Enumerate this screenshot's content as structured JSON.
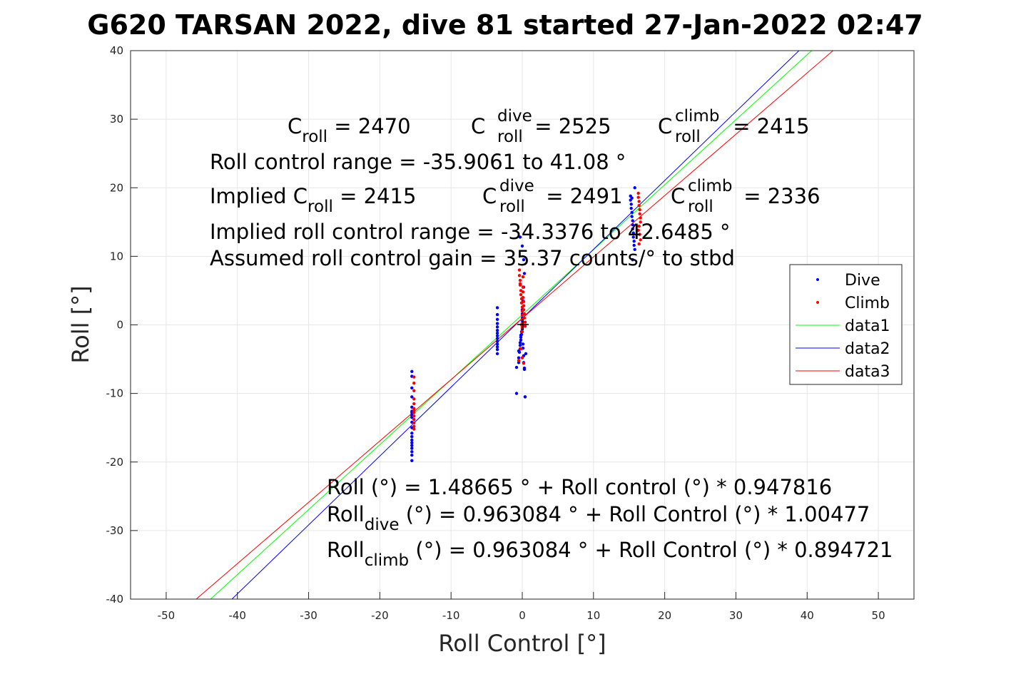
{
  "chart_data": {
    "type": "scatter",
    "title": "G620 TARSAN 2022, dive 81 started 27-Jan-2022 02:47",
    "xlabel": "Roll Control [°]",
    "ylabel": "Roll [°]",
    "xlim": [
      -55,
      55
    ],
    "ylim": [
      -40,
      40
    ],
    "xticks": [
      -50,
      -40,
      -30,
      -20,
      -10,
      0,
      10,
      20,
      30,
      40,
      50
    ],
    "yticks": [
      -40,
      -30,
      -20,
      -10,
      0,
      10,
      20,
      30,
      40
    ],
    "grid": true,
    "legend_position": "right",
    "legend": [
      "Dive",
      "Climb",
      "data1",
      "data2",
      "data3"
    ],
    "colors": {
      "dive": "#0000ff",
      "climb": "#ff0000",
      "data1": "#00ff00",
      "data2": "#0000ff",
      "data3": "#ff0000",
      "grid": "#e6e6e6",
      "axis": "#262626"
    },
    "lines": [
      {
        "name": "data1",
        "intercept": 1.48665,
        "slope": 0.947816
      },
      {
        "name": "data2",
        "intercept": 0.963084,
        "slope": 1.00477
      },
      {
        "name": "data3",
        "intercept": 0.963084,
        "slope": 0.894721
      }
    ],
    "series": [
      {
        "name": "Dive",
        "x": [
          -15.5,
          -15.5,
          -15.5,
          -15.5,
          -15.5,
          -15.5,
          -15.5,
          -15.5,
          -15.5,
          -15.5,
          -15.5,
          -15.5,
          -15.5,
          -15.5,
          -15.5,
          -15.5,
          -15.5,
          -15.5,
          -15.5,
          -15.5,
          -3.5,
          -3.5,
          -3.5,
          -3.5,
          -3.5,
          -3.5,
          -3.5,
          -3.5,
          -3.5,
          -3.5,
          -3.5,
          -3.5,
          -3.5,
          -3.5,
          -0.8,
          -0.8,
          -0.5,
          -0.5,
          -0.4,
          -0.3,
          -0.3,
          -0.3,
          -0.2,
          -0.2,
          -0.1,
          -0.1,
          0,
          0,
          0,
          0,
          0,
          0,
          0,
          0.1,
          0.1,
          0.2,
          0.2,
          0.3,
          0.3,
          0.4,
          0.4,
          0.5,
          0.3,
          0.2,
          0,
          -0.3,
          -0.2,
          0.1,
          0.2,
          -0.5,
          15.2,
          15.2,
          15.3,
          15.3,
          15.4,
          15.4,
          15.5,
          15.5,
          15.5,
          15.6,
          15.6,
          15.7,
          15.7,
          15.8,
          15.8,
          15.5,
          15.4
        ],
        "y": [
          -6.8,
          -7.5,
          -9.2,
          -10.5,
          -12.0,
          -12.8,
          -13.5,
          -14.2,
          -15.0,
          -15.8,
          -16.3,
          -16.8,
          -17.2,
          -17.6,
          -18.0,
          -18.5,
          -19.0,
          -19.8,
          -13.2,
          -12.6,
          2.5,
          1.5,
          0.8,
          0.2,
          -0.3,
          -0.8,
          -1.2,
          -1.6,
          -2.0,
          -2.4,
          -2.8,
          -3.2,
          -3.6,
          -4.2,
          -10.0,
          -6.2,
          -5.5,
          -4.8,
          -4.0,
          -3.5,
          -3.0,
          -2.6,
          -2.2,
          -1.8,
          -1.4,
          -1.0,
          -0.6,
          -0.2,
          0.2,
          0.6,
          1.0,
          1.6,
          2.2,
          -2.8,
          -3.4,
          -4.5,
          -5.5,
          -6.3,
          -6.5,
          -10.5,
          -10.5,
          -4.2,
          7.5,
          9.5,
          11.5,
          12.8,
          -1.5,
          3.5,
          5.5,
          -3.8,
          18.8,
          18.2,
          17.6,
          17.0,
          16.4,
          15.8,
          15.2,
          14.6,
          14.0,
          13.4,
          12.8,
          12.2,
          11.6,
          11.0,
          20.0,
          9.5,
          18.5
        ]
      },
      {
        "name": "Climb",
        "x": [
          -15.2,
          -15.2,
          -15.2,
          -15.2,
          -15.2,
          -15.2,
          -15.2,
          -15.2,
          -15.2,
          -15.2,
          -15.2,
          -15.2,
          -15.2,
          -0.4,
          -0.4,
          -0.3,
          -0.3,
          -0.2,
          -0.2,
          -0.1,
          -0.1,
          0,
          0,
          0,
          0,
          0,
          0,
          0,
          0.1,
          0.1,
          0.1,
          0.2,
          0.2,
          0.2,
          0.3,
          0.3,
          0.4,
          0.4,
          -0.2,
          0,
          0.2,
          -0.5,
          -0.3,
          0.1,
          -0.1,
          16.3,
          16.3,
          16.4,
          16.4,
          16.5,
          16.5,
          16.6,
          16.6,
          16.4,
          16.3,
          16.5,
          16.6,
          16.4
        ],
        "y": [
          -7.6,
          -8.5,
          -9.6,
          -10.8,
          -11.5,
          -12.2,
          -12.8,
          -13.3,
          -13.8,
          -14.3,
          -14.8,
          -15.2,
          -12.5,
          8.0,
          7.2,
          6.5,
          5.8,
          5.0,
          4.4,
          3.8,
          3.2,
          2.6,
          2.0,
          1.4,
          0.8,
          0.2,
          -0.4,
          -1.0,
          5.5,
          4.8,
          4.0,
          3.4,
          2.8,
          2.2,
          1.6,
          1.0,
          0.4,
          -0.2,
          -3.5,
          -4.8,
          -5.6,
          -5.2,
          6.0,
          7.0,
          0.0,
          19.2,
          18.6,
          18.0,
          17.4,
          16.8,
          16.2,
          15.6,
          15.0,
          14.4,
          13.8,
          13.2,
          12.4,
          11.8
        ]
      }
    ],
    "annotations": {
      "ctrl_row": [
        {
          "pre": "C",
          "sub": "roll",
          "post": " = 2470"
        },
        {
          "pre": "C",
          "sup": "dive",
          "sub": "roll",
          "post": " = 2525"
        },
        {
          "pre": "C",
          "sup": "climb",
          "sub": "roll",
          "post": " = 2415"
        }
      ],
      "range_text": "Roll control range = -35.9061 to 41.08 °",
      "implied_row": [
        {
          "pre": "Implied C",
          "sub": "roll",
          "post": " = 2415"
        },
        {
          "pre": "C",
          "sup": "dive",
          "sub": "roll",
          "post": " = 2491"
        },
        {
          "pre": "C",
          "sup": "climb",
          "sub": "roll",
          "post": " = 2336"
        }
      ],
      "implied_range_text": "Implied roll control range = -34.3376 to 42.6485 °",
      "gain_text": "Assumed roll control gain = 35.37 counts/° to stbd",
      "fit_text": "Roll (°) = 1.48665 ° + Roll control (°) * 0.947816",
      "fit_dive": {
        "pre": "Roll",
        "sub": "dive",
        "post": " (°) = 0.963084 ° + Roll Control (°) * 1.00477"
      },
      "fit_climb": {
        "pre": "Roll",
        "sub": "climb",
        "post": " (°) = 0.963084 ° + Roll Control (°) * 0.894721"
      }
    }
  }
}
